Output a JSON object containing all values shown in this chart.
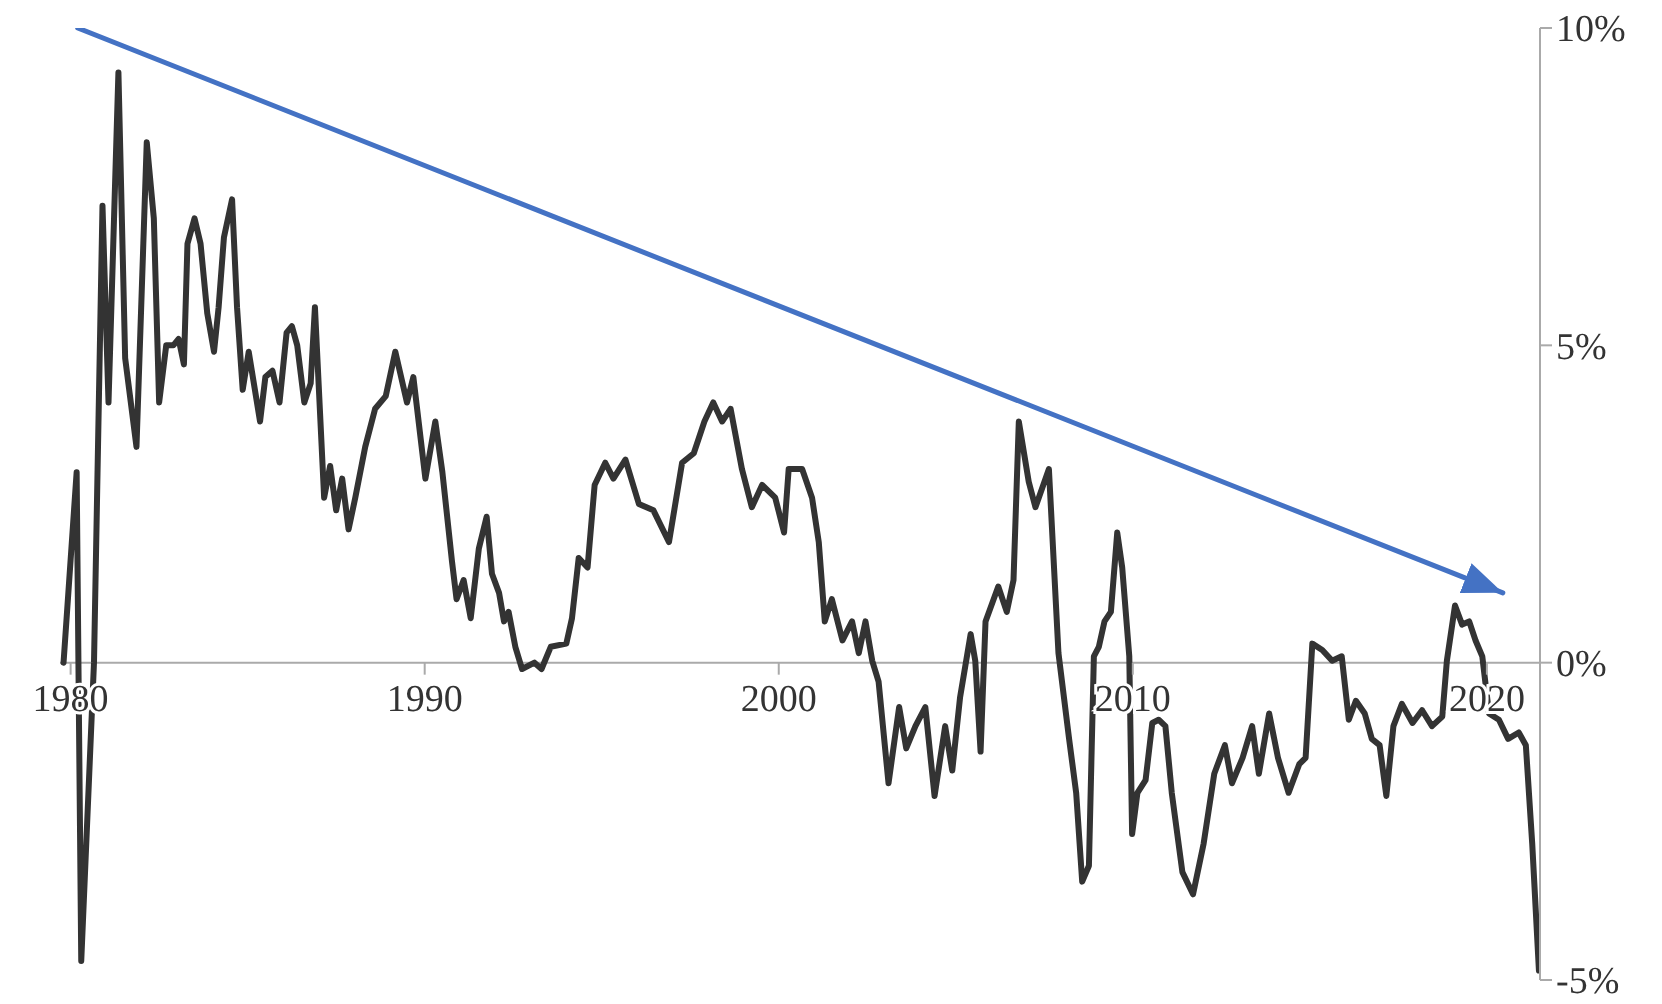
{
  "chart_data": {
    "type": "line",
    "xlim": [
      1979.7,
      2021.5
    ],
    "xticks": [
      1980,
      1990,
      2000,
      2010,
      2020
    ],
    "ylim": [
      -5,
      10
    ],
    "yticks": [
      {
        "value": -5,
        "label": "-5%"
      },
      {
        "value": 0,
        "label": "0%"
      },
      {
        "value": 5,
        "label": "5%"
      },
      {
        "value": 10,
        "label": "10%"
      }
    ],
    "line_style": "solid",
    "series": [
      {
        "color": "#333333",
        "x": [
          1979.8,
          1980.17,
          1980.3,
          1980.66,
          1980.9,
          1981.07,
          1981.35,
          1981.54,
          1981.86,
          1982.15,
          1982.35,
          1982.5,
          1982.7,
          1982.9,
          1983.05,
          1983.2,
          1983.3,
          1983.5,
          1983.67,
          1983.86,
          1984.05,
          1984.18,
          1984.33,
          1984.56,
          1984.7,
          1984.86,
          1985.03,
          1985.35,
          1985.5,
          1985.7,
          1985.9,
          1986.1,
          1986.25,
          1986.4,
          1986.6,
          1986.78,
          1986.9,
          1987.16,
          1987.33,
          1987.5,
          1987.67,
          1987.85,
          1988.04,
          1988.32,
          1988.6,
          1988.9,
          1989.17,
          1989.5,
          1989.68,
          1990.02,
          1990.3,
          1990.5,
          1990.77,
          1990.9,
          1991.1,
          1991.3,
          1991.53,
          1991.75,
          1991.9,
          1992.1,
          1992.24,
          1992.37,
          1992.56,
          1992.75,
          1993.1,
          1993.3,
          1993.56,
          1994.0,
          1994.16,
          1994.35,
          1994.6,
          1994.8,
          1995.1,
          1995.33,
          1995.67,
          1996.05,
          1996.46,
          1996.9,
          1997.27,
          1997.6,
          1997.9,
          1998.15,
          1998.4,
          1998.64,
          1998.96,
          1999.24,
          1999.53,
          1999.9,
          2000.15,
          2000.28,
          2000.66,
          2000.94,
          2001.13,
          2001.3,
          2001.5,
          2001.8,
          2002.07,
          2002.26,
          2002.45,
          2002.64,
          2002.82,
          2003.1,
          2003.4,
          2003.6,
          2003.86,
          2004.14,
          2004.4,
          2004.7,
          2004.9,
          2005.12,
          2005.42,
          2005.55,
          2005.7,
          2005.84,
          2006.2,
          2006.44,
          2006.63,
          2006.78,
          2007.06,
          2007.25,
          2007.63,
          2007.9,
          2008.2,
          2008.4,
          2008.57,
          2008.76,
          2008.9,
          2009.04,
          2009.2,
          2009.38,
          2009.56,
          2009.7,
          2009.9,
          2009.98,
          2010.13,
          2010.36,
          2010.55,
          2010.73,
          2010.92,
          2011.1,
          2011.4,
          2011.7,
          2012.0,
          2012.3,
          2012.6,
          2012.8,
          2013.1,
          2013.37,
          2013.56,
          2013.85,
          2014.1,
          2014.4,
          2014.7,
          2014.88,
          2015.07,
          2015.35,
          2015.63,
          2015.9,
          2016.1,
          2016.3,
          2016.55,
          2016.75,
          2016.97,
          2017.16,
          2017.36,
          2017.6,
          2017.9,
          2018.17,
          2018.45,
          2018.74,
          2018.87,
          2019.1,
          2019.3,
          2019.5,
          2019.68,
          2019.87,
          2020.06,
          2020.34,
          2020.6,
          2020.9,
          2021.1,
          2021.28,
          2021.47
        ],
        "values": [
          0,
          3.0,
          -4.7,
          0,
          7.2,
          4.1,
          9.3,
          4.8,
          3.4,
          8.2,
          7.0,
          4.1,
          5.0,
          5.0,
          5.1,
          4.7,
          6.6,
          7.0,
          6.6,
          5.5,
          4.9,
          5.6,
          6.7,
          7.3,
          5.6,
          4.3,
          4.9,
          3.8,
          4.5,
          4.6,
          4.1,
          5.2,
          5.3,
          5.0,
          4.1,
          4.4,
          5.6,
          2.6,
          3.1,
          2.4,
          2.9,
          2.1,
          2.6,
          3.4,
          4.0,
          4.2,
          4.9,
          4.1,
          4.5,
          2.9,
          3.8,
          3.0,
          1.6,
          1.0,
          1.3,
          0.7,
          1.8,
          2.3,
          1.4,
          1.1,
          0.65,
          0.8,
          0.25,
          -0.1,
          0,
          -0.1,
          0.25,
          0.3,
          0.7,
          1.65,
          1.5,
          2.8,
          3.15,
          2.9,
          3.2,
          2.5,
          2.4,
          1.9,
          3.15,
          3.3,
          3.8,
          4.1,
          3.8,
          4.0,
          3.05,
          2.45,
          2.8,
          2.6,
          2.05,
          3.05,
          3.05,
          2.6,
          1.9,
          0.65,
          1.0,
          0.35,
          0.65,
          0.15,
          0.65,
          0.03,
          -0.3,
          -1.9,
          -0.7,
          -1.35,
          -1.0,
          -0.7,
          -2.1,
          -1.0,
          -1.7,
          -0.55,
          0.45,
          0.03,
          -1.4,
          0.65,
          1.2,
          0.8,
          1.3,
          3.8,
          2.85,
          2.45,
          3.05,
          0.15,
          -1.2,
          -2.05,
          -3.45,
          -3.2,
          0.1,
          0.25,
          0.65,
          0.8,
          2.05,
          1.5,
          0.1,
          -2.7,
          -2.05,
          -1.85,
          -0.95,
          -0.9,
          -1.0,
          -2.05,
          -3.3,
          -3.65,
          -2.85,
          -1.75,
          -1.3,
          -1.9,
          -1.5,
          -1.0,
          -1.75,
          -0.8,
          -1.5,
          -2.05,
          -1.6,
          -1.5,
          0.3,
          0.2,
          0.03,
          0.1,
          -0.9,
          -0.6,
          -0.8,
          -1.2,
          -1.3,
          -2.1,
          -1.0,
          -0.65,
          -0.95,
          -0.75,
          -1.0,
          -0.85,
          0.03,
          0.9,
          0.6,
          0.65,
          0.35,
          0.1,
          -0.8,
          -0.9,
          -1.2,
          -1.1,
          -1.3,
          -2.85,
          -4.85
        ]
      },
      {
        "type": "line",
        "color": "#4472c4",
        "x": [
          1980.2,
          2020.45
        ],
        "values": [
          10,
          1.1
        ]
      }
    ]
  }
}
